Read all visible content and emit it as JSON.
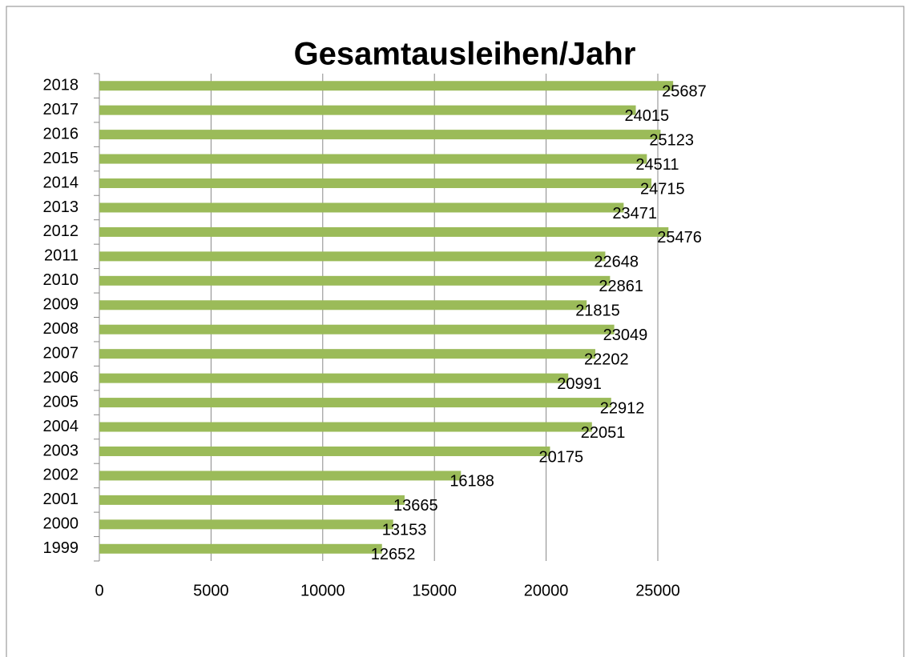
{
  "chart_data": {
    "type": "bar",
    "orientation": "horizontal",
    "title": "Gesamtausleihen/Jahr",
    "categories": [
      "1999",
      "2000",
      "2001",
      "2002",
      "2003",
      "2004",
      "2005",
      "2006",
      "2007",
      "2008",
      "2009",
      "2010",
      "2011",
      "2012",
      "2013",
      "2014",
      "2015",
      "2016",
      "2017",
      "2018"
    ],
    "values": [
      12652,
      13153,
      13665,
      16188,
      20175,
      22051,
      22912,
      20991,
      22202,
      23049,
      21815,
      22861,
      22648,
      25476,
      23471,
      24715,
      24511,
      25123,
      24015,
      25687
    ],
    "color": "#9bbb59",
    "xlim": [
      0,
      26000
    ],
    "xticks": [
      0,
      5000,
      10000,
      15000,
      20000,
      25000
    ],
    "grid": true
  }
}
